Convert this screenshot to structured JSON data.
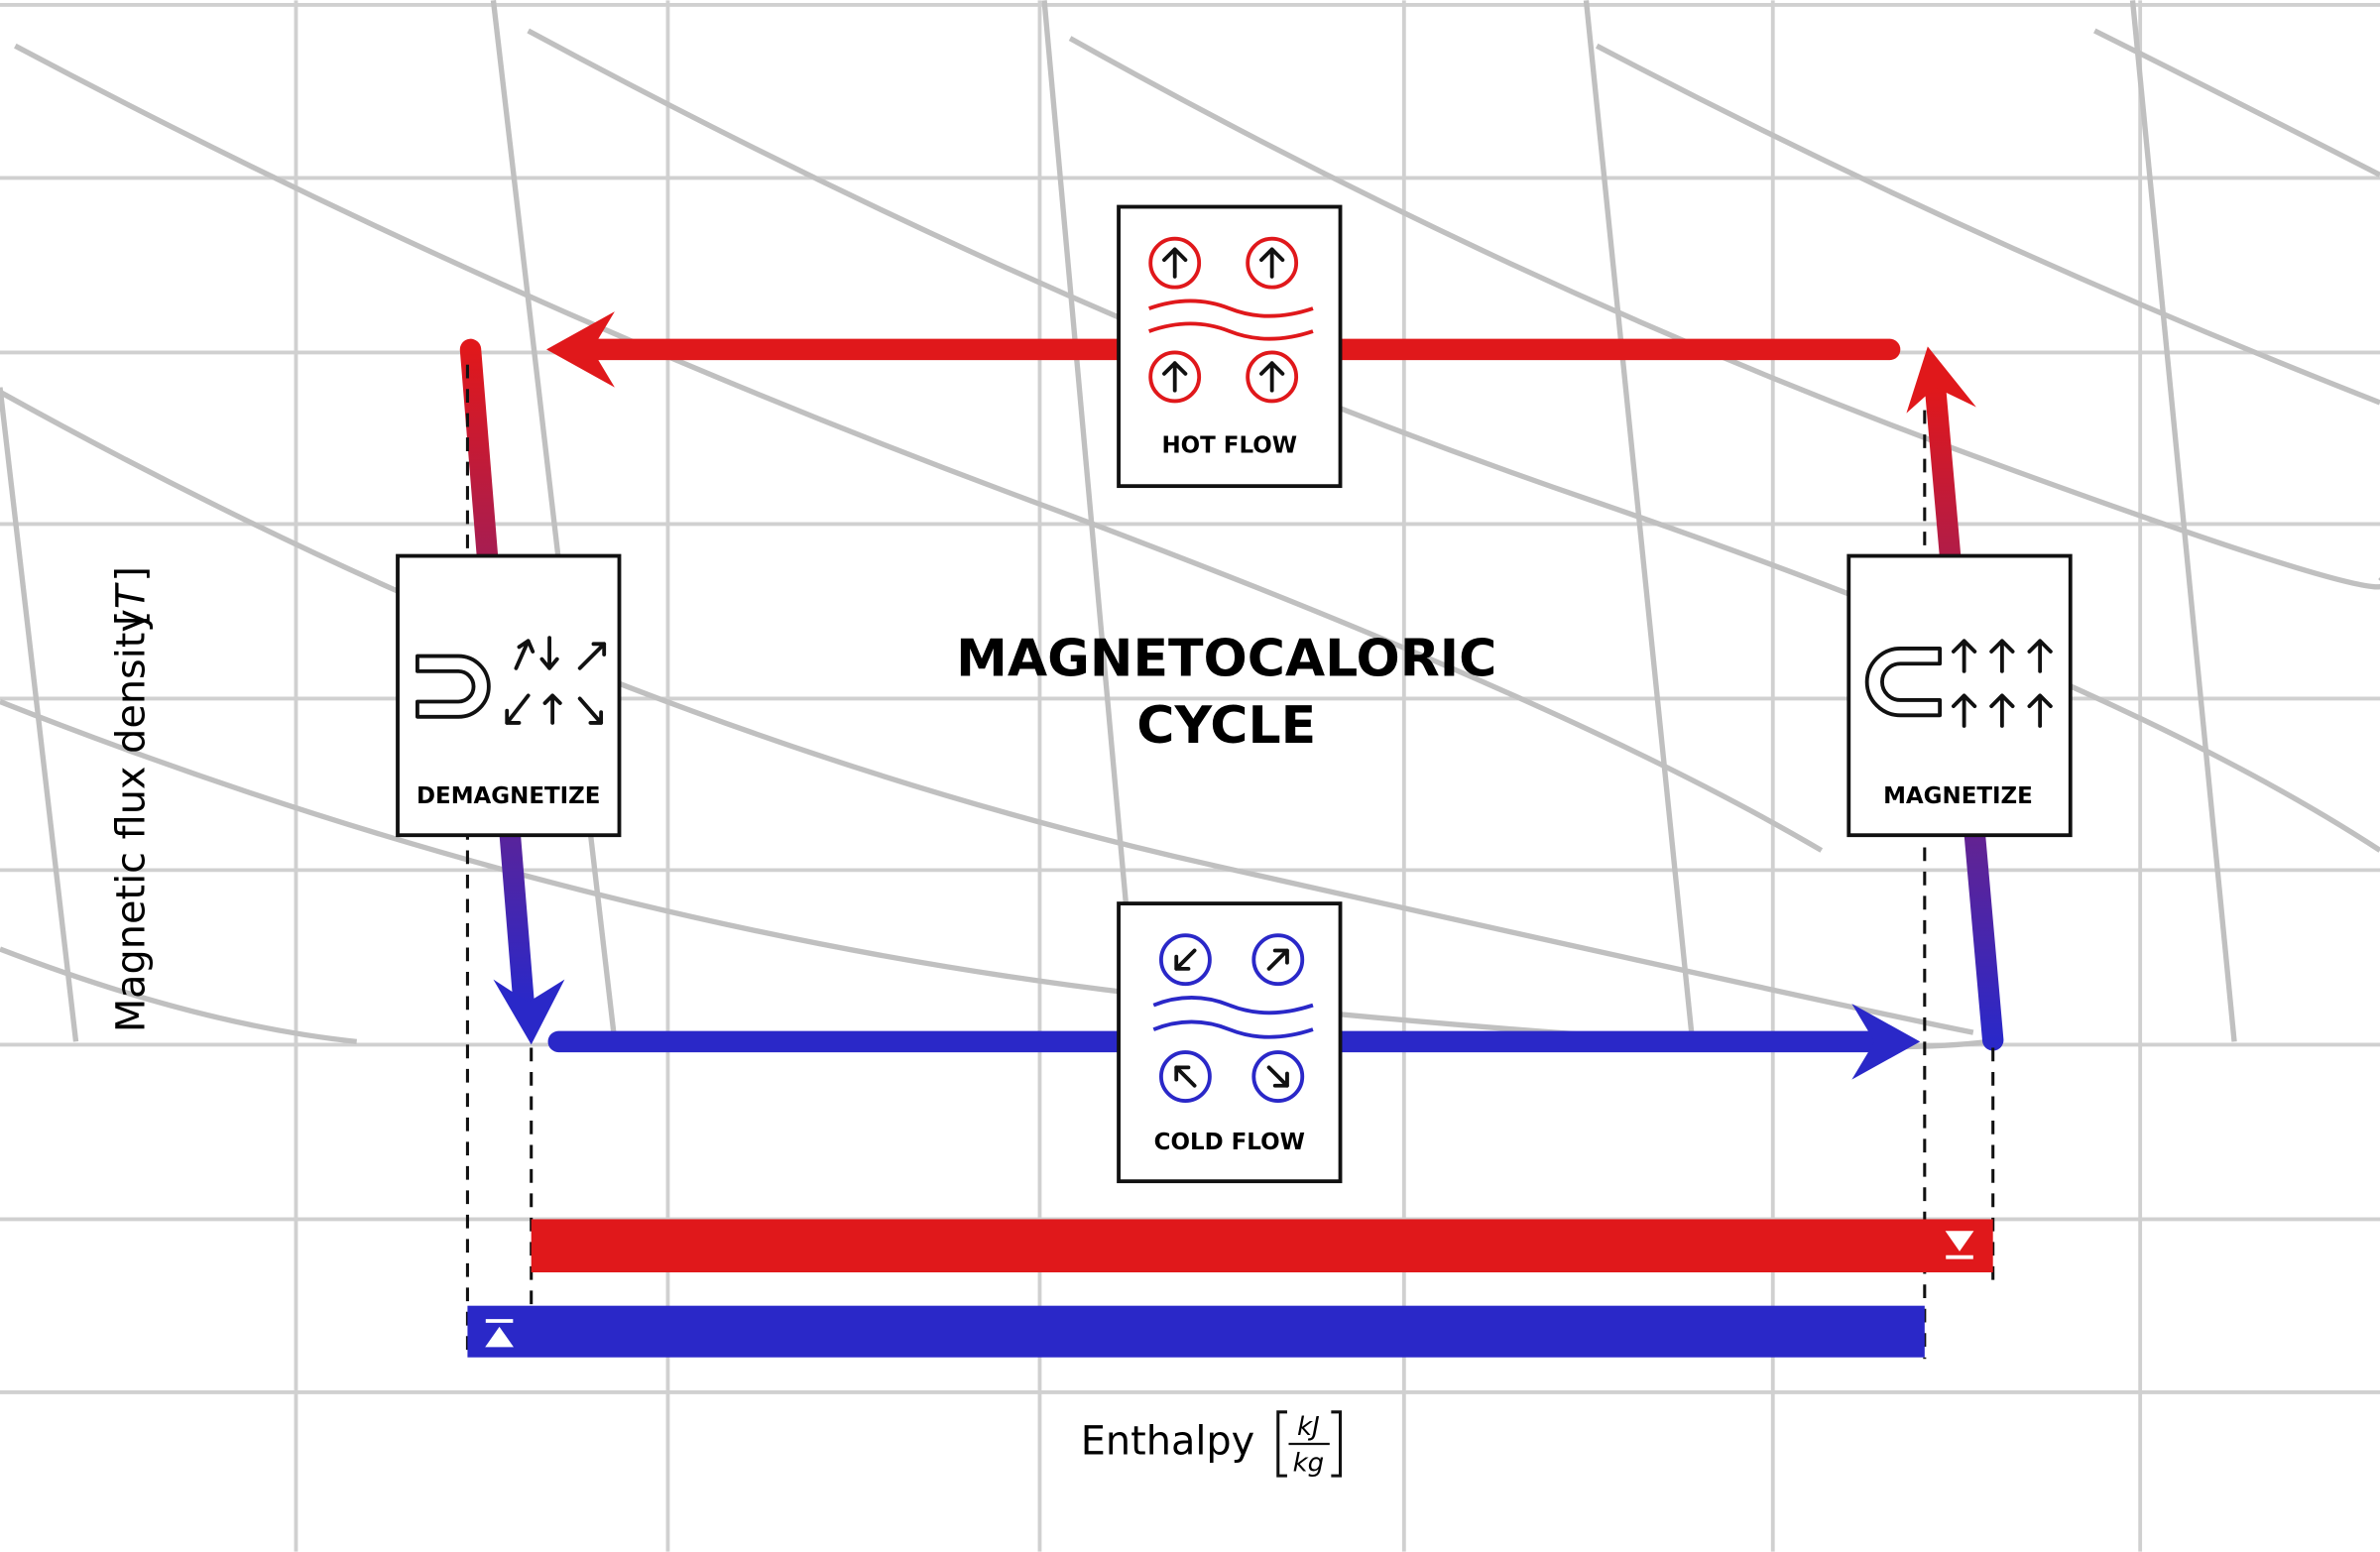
{
  "title": {
    "lines": [
      "MAGNETOCALORIC",
      "CYCLE"
    ]
  },
  "axes": {
    "y_label": "Magnetic flux density",
    "y_unit": "T",
    "x_label": "Enthalpy",
    "x_unit_numerator": "kJ",
    "x_unit_denominator": "kg"
  },
  "nodes": [
    {
      "label": "HOT FLOW"
    },
    {
      "label": "COLD FLOW"
    },
    {
      "label": "DEMAGNETIZE"
    },
    {
      "label": "MAGNETIZE"
    }
  ]
}
